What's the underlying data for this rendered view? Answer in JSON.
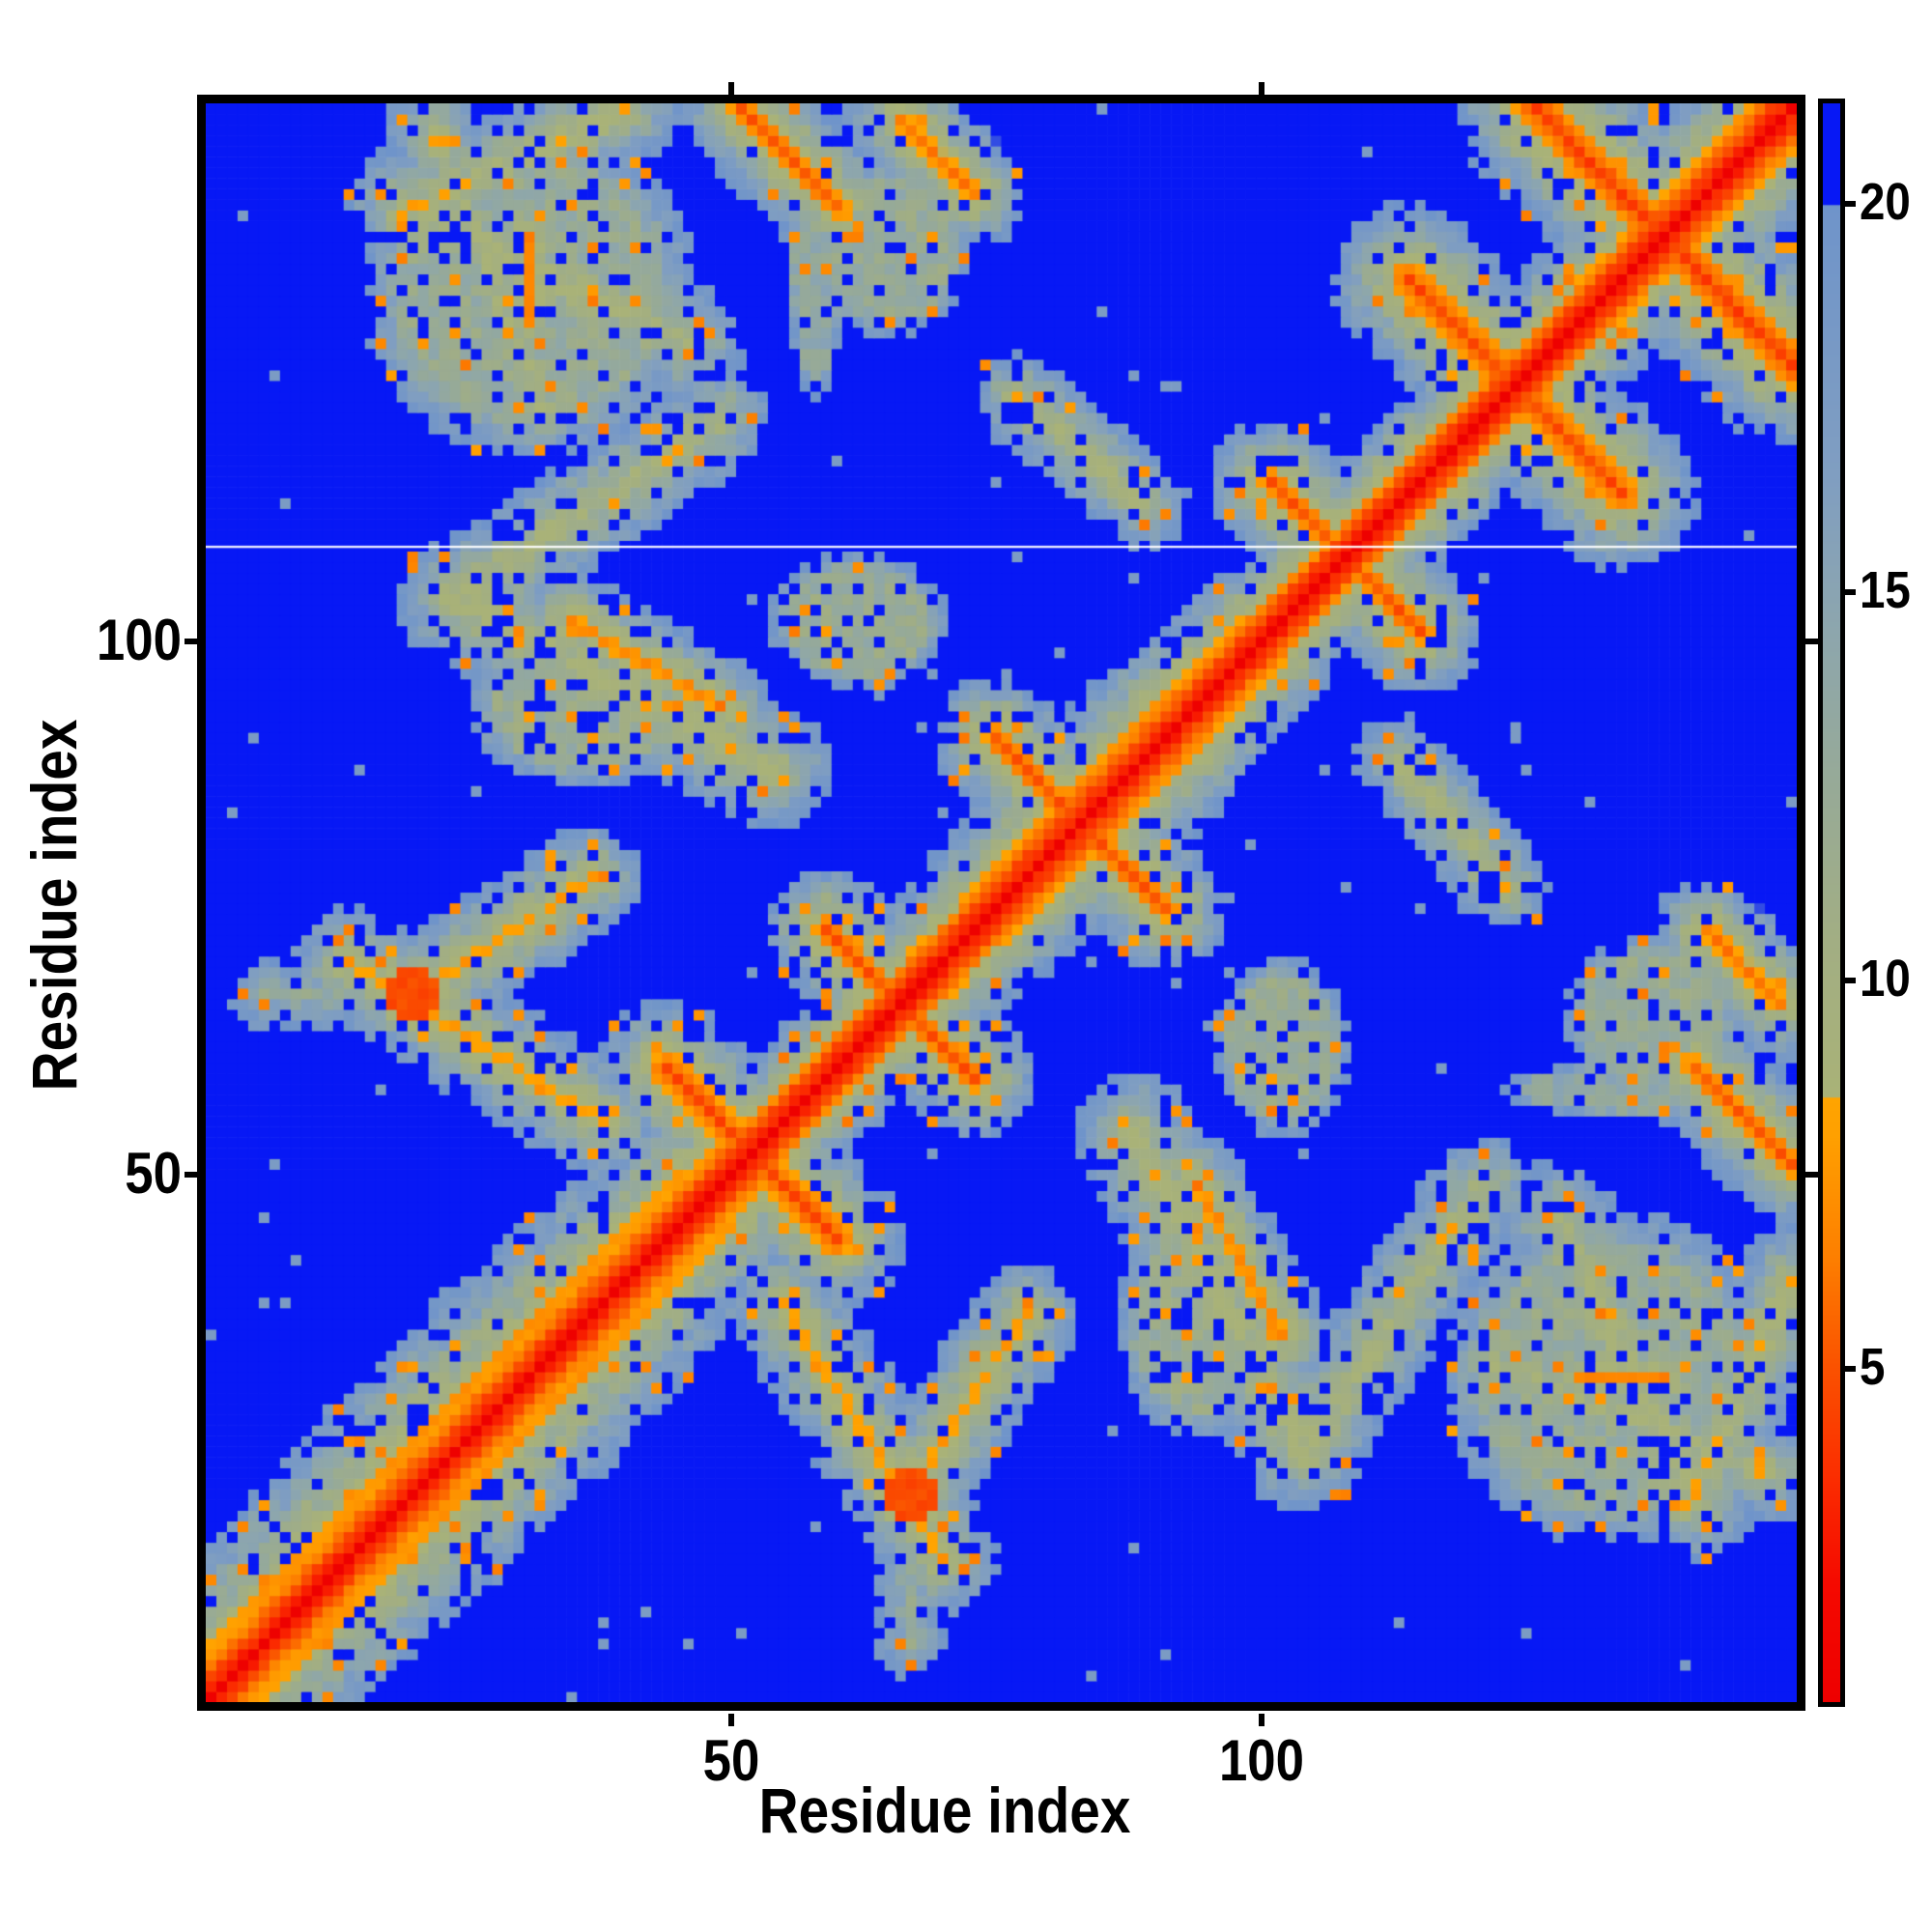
{
  "chart_data": {
    "type": "heatmap",
    "xlabel": "Residue index",
    "ylabel": "Residue index",
    "n_residues": 150,
    "x_range": [
      1,
      150
    ],
    "y_range": [
      1,
      150
    ],
    "x_ticks": [
      50,
      100
    ],
    "y_ticks": [
      50,
      100
    ],
    "grid": false,
    "orientation": "y increases upward, main diagonal runs bottom-left to top-right",
    "colorbar": {
      "position": "right",
      "ticks": [
        5,
        10,
        15,
        20
      ],
      "vmin": 0.7,
      "vmax": 21.3,
      "over_color": "#0718f5",
      "stops": [
        [
          0.7,
          "#ee0000"
        ],
        [
          2.2,
          "#f50900"
        ],
        [
          3.6,
          "#fb2d00"
        ],
        [
          5.0,
          "#fa5100"
        ],
        [
          6.4,
          "#fd7e00"
        ],
        [
          8.0,
          "#ffa000"
        ],
        [
          8.49,
          "#ffa400"
        ],
        [
          8.5,
          "#a9b277"
        ],
        [
          10.5,
          "#a2ae83"
        ],
        [
          12.5,
          "#97aa97"
        ],
        [
          14.5,
          "#8da6ad"
        ],
        [
          16.5,
          "#809ec1"
        ],
        [
          19.99,
          "#6f94ca"
        ],
        [
          20.0,
          "#0718f5"
        ],
        [
          23.5,
          "#0718f5"
        ]
      ]
    },
    "matrix_generator": {
      "encoding": "procedural residue-residue distance matrix, symmetric, distances in colorbar units; cell value = min(background, chain_band, features) + deterministic speckle noise",
      "background_value": 23.5,
      "artifact_white_row": 108.5,
      "chain_band": {
        "d_delta0": 0.8,
        "d_delta1": 3.3,
        "d_delta2": 4.7,
        "helix_wobble": 0.8,
        "slope_points": [
          [
            0,
            1.35
          ],
          [
            10,
            1.12
          ],
          [
            30,
            1.08
          ],
          [
            48,
            1.28
          ],
          [
            56,
            2.35
          ],
          [
            63,
            2.0
          ],
          [
            70,
            1.85
          ],
          [
            80,
            1.5
          ],
          [
            92,
            1.5
          ],
          [
            100,
            1.8
          ],
          [
            107,
            2.15
          ],
          [
            116,
            1.95
          ],
          [
            130,
            1.9
          ],
          [
            140,
            1.65
          ],
          [
            150,
            1.55
          ]
        ]
      },
      "hairpins": [
        {
          "center": 52,
          "len": 8,
          "core": 4.6,
          "spread": 2.3
        },
        {
          "center": 66,
          "len": 7,
          "core": 5.0,
          "spread": 2.5
        },
        {
          "center": 83,
          "len": 8,
          "core": 5.0,
          "spread": 2.5
        },
        {
          "center": 108,
          "len": 7,
          "core": 5.0,
          "spread": 2.5
        },
        {
          "center": 124,
          "len": 10,
          "core": 4.6,
          "spread": 2.1
        },
        {
          "center": 138,
          "len": 12,
          "core": 4.3,
          "spread": 2.0
        }
      ],
      "contacts": [
        {
          "type": "seg",
          "a": [
            51,
            150
          ],
          "b": [
            60,
            141
          ],
          "core": 5.2,
          "spread": 2.6
        },
        {
          "type": "seg",
          "a": [
            66,
            149
          ],
          "b": [
            73,
            142
          ],
          "core": 6.2,
          "spread": 2.6
        },
        {
          "type": "seg",
          "a": [
            14,
            70
          ],
          "b": [
            38,
            55
          ],
          "core": 7.5,
          "spread": 2.3
        },
        {
          "type": "seg",
          "a": [
            22,
            68
          ],
          "b": [
            37,
            78
          ],
          "core": 7.5,
          "spread": 2.5
        },
        {
          "type": "blob",
          "c": [
            20,
            67
          ],
          "r": [
            3,
            3
          ],
          "core": 4.8
        },
        {
          "type": "seg",
          "a": [
            6,
            67
          ],
          "b": [
            20,
            67
          ],
          "core": 13.0,
          "spread": 2.0
        },
        {
          "type": "seg",
          "a": [
            54,
            88
          ],
          "b": [
            24,
            104
          ],
          "core": 8.5,
          "spread": 2.0
        },
        {
          "type": "seg",
          "a": [
            49,
            94
          ],
          "b": [
            35,
            102
          ],
          "core": 6.4,
          "spread": 2.9
        },
        {
          "type": "seg",
          "a": [
            24,
            104
          ],
          "b": [
            49,
            121
          ],
          "core": 9.0,
          "spread": 2.2
        },
        {
          "type": "seg",
          "a": [
            46,
            128
          ],
          "b": [
            19,
            141
          ],
          "core": 8.6,
          "spread": 2.1
        },
        {
          "type": "seg",
          "a": [
            19,
            140
          ],
          "b": [
            40,
            150
          ],
          "core": 8.2,
          "spread": 2.3
        },
        {
          "type": "seg",
          "a": [
            31,
            130
          ],
          "b": [
            31,
            138
          ],
          "core": 6.4,
          "spread": 3.0
        },
        {
          "type": "seg",
          "a": [
            22,
            148
          ],
          "b": [
            32,
            122
          ],
          "core": 9.0,
          "spread": 2.4
        },
        {
          "type": "blob",
          "c": [
            31,
            133
          ],
          "r": [
            15,
            15
          ],
          "core": 12.5
        },
        {
          "type": "blob",
          "c": [
            36,
            94
          ],
          "r": [
            10,
            7
          ],
          "core": 12.0
        },
        {
          "type": "blob",
          "c": [
            62,
            102
          ],
          "r": [
            8,
            6
          ],
          "core": 12.2
        },
        {
          "type": "seg",
          "a": [
            77,
            123
          ],
          "b": [
            89,
            113
          ],
          "core": 8.6,
          "spread": 2.6
        },
        {
          "type": "blob",
          "c": [
            65,
            137
          ],
          "r": [
            7,
            8
          ],
          "core": 12.5
        },
        {
          "type": "blob",
          "c": [
            58,
            135
          ],
          "r": [
            2.5,
            12
          ],
          "core": 13.5
        }
      ],
      "noise": {
        "hole_frac": 0.13,
        "orange_frac": 0.045,
        "fuzz": 4.0,
        "stray_frac": 0.006
      }
    }
  }
}
